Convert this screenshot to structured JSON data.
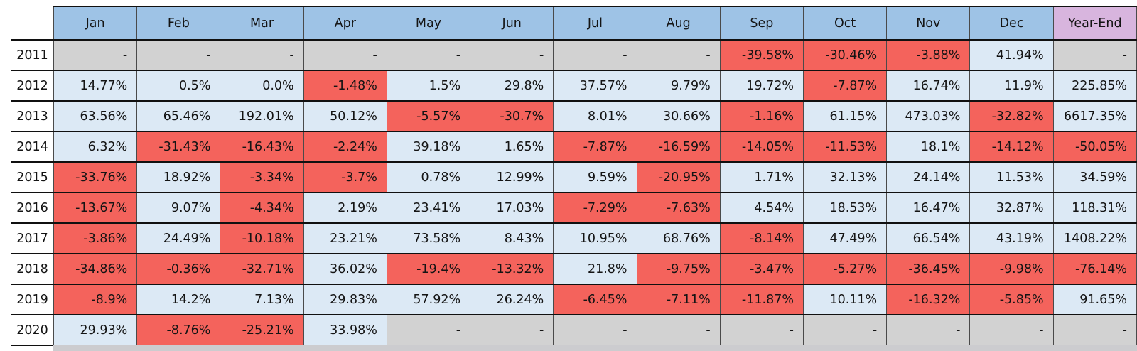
{
  "colors": {
    "header_bg": "#9EC3E6",
    "yearend_header_bg": "#D8B5DE",
    "positive_bg": "#DCE9F5",
    "negative_bg": "#F4635C",
    "missing_bg": "#D2D2D2",
    "grid_line": "#4A4A4A",
    "row_line": "#101010",
    "text": "#141414"
  },
  "chart_data": {
    "type": "table",
    "missing_marker": "-",
    "columns": [
      "Jan",
      "Feb",
      "Mar",
      "Apr",
      "May",
      "Jun",
      "Jul",
      "Aug",
      "Sep",
      "Oct",
      "Nov",
      "Dec",
      "Year-End"
    ],
    "rows": [
      {
        "year": "2011",
        "values": [
          "-",
          "-",
          "-",
          "-",
          "-",
          "-",
          "-",
          "-",
          "-39.58%",
          "-30.46%",
          "-3.88%",
          "41.94%",
          "-"
        ]
      },
      {
        "year": "2012",
        "values": [
          "14.77%",
          "0.5%",
          "0.0%",
          "-1.48%",
          "1.5%",
          "29.8%",
          "37.57%",
          "9.79%",
          "19.72%",
          "-7.87%",
          "16.74%",
          "11.9%",
          "225.85%"
        ]
      },
      {
        "year": "2013",
        "values": [
          "63.56%",
          "65.46%",
          "192.01%",
          "50.12%",
          "-5.57%",
          "-30.7%",
          "8.01%",
          "30.66%",
          "-1.16%",
          "61.15%",
          "473.03%",
          "-32.82%",
          "6617.35%"
        ]
      },
      {
        "year": "2014",
        "values": [
          "6.32%",
          "-31.43%",
          "-16.43%",
          "-2.24%",
          "39.18%",
          "1.65%",
          "-7.87%",
          "-16.59%",
          "-14.05%",
          "-11.53%",
          "18.1%",
          "-14.12%",
          "-50.05%"
        ]
      },
      {
        "year": "2015",
        "values": [
          "-33.76%",
          "18.92%",
          "-3.34%",
          "-3.7%",
          "0.78%",
          "12.99%",
          "9.59%",
          "-20.95%",
          "1.71%",
          "32.13%",
          "24.14%",
          "11.53%",
          "34.59%"
        ]
      },
      {
        "year": "2016",
        "values": [
          "-13.67%",
          "9.07%",
          "-4.34%",
          "2.19%",
          "23.41%",
          "17.03%",
          "-7.29%",
          "-7.63%",
          "4.54%",
          "18.53%",
          "16.47%",
          "32.87%",
          "118.31%"
        ]
      },
      {
        "year": "2017",
        "values": [
          "-3.86%",
          "24.49%",
          "-10.18%",
          "23.21%",
          "73.58%",
          "8.43%",
          "10.95%",
          "68.76%",
          "-8.14%",
          "47.49%",
          "66.54%",
          "43.19%",
          "1408.22%"
        ]
      },
      {
        "year": "2018",
        "values": [
          "-34.86%",
          "-0.36%",
          "-32.71%",
          "36.02%",
          "-19.4%",
          "-13.32%",
          "21.8%",
          "-9.75%",
          "-3.47%",
          "-5.27%",
          "-36.45%",
          "-9.98%",
          "-76.14%"
        ]
      },
      {
        "year": "2019",
        "values": [
          "-8.9%",
          "14.2%",
          "7.13%",
          "29.83%",
          "57.92%",
          "26.24%",
          "-6.45%",
          "-7.11%",
          "-11.87%",
          "10.11%",
          "-16.32%",
          "-5.85%",
          "91.65%"
        ]
      },
      {
        "year": "2020",
        "values": [
          "29.93%",
          "-8.76%",
          "-25.21%",
          "33.98%",
          "-",
          "-",
          "-",
          "-",
          "-",
          "-",
          "-",
          "-",
          "-"
        ]
      }
    ]
  }
}
